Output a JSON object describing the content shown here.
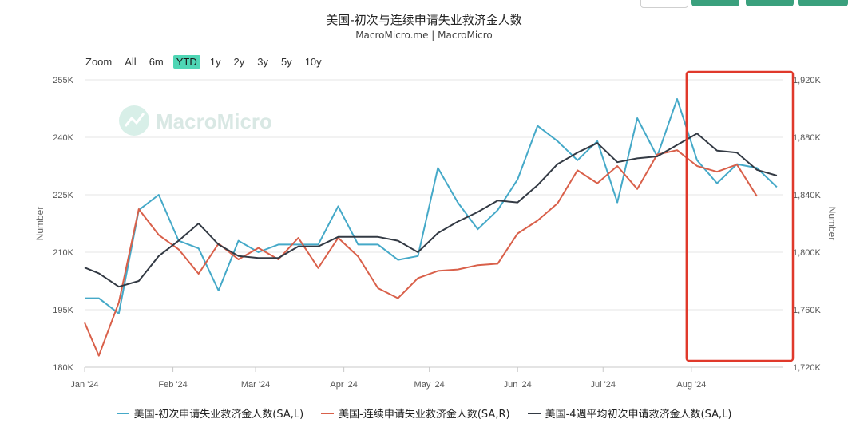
{
  "header": {
    "title": "美国-初次与连续申请失业救济金人数",
    "subtitle": "MacroMicro.me | MacroMicro"
  },
  "zoom": {
    "label": "Zoom",
    "options": [
      "All",
      "6m",
      "YTD",
      "1y",
      "2y",
      "3y",
      "5y",
      "10y"
    ],
    "active": "YTD"
  },
  "watermark": {
    "text": "MacroMicro"
  },
  "colors": {
    "initial": "#45a9c8",
    "continuing": "#d9604a",
    "avg4w": "#333a44",
    "highlight": "#e0392b"
  },
  "chart_data": {
    "type": "line",
    "x_ticks": [
      {
        "t": 0,
        "label": "Jan '24"
      },
      {
        "t": 31,
        "label": "Feb '24"
      },
      {
        "t": 60,
        "label": "Mar '24"
      },
      {
        "t": 91,
        "label": "Apr '24"
      },
      {
        "t": 121,
        "label": "May '24"
      },
      {
        "t": 152,
        "label": "Jun '24"
      },
      {
        "t": 182,
        "label": "Jul '24"
      },
      {
        "t": 213,
        "label": "Aug '24"
      }
    ],
    "x_range": [
      0,
      245
    ],
    "left_axis": {
      "title": "Number",
      "min": 180000,
      "max": 255000,
      "ticks": [
        {
          "v": 180000,
          "label": "180K"
        },
        {
          "v": 195000,
          "label": "195K"
        },
        {
          "v": 210000,
          "label": "210K"
        },
        {
          "v": 225000,
          "label": "225K"
        },
        {
          "v": 240000,
          "label": "240K"
        },
        {
          "v": 255000,
          "label": "255K"
        }
      ]
    },
    "right_axis": {
      "title": "Number",
      "min": 1720000,
      "max": 1920000,
      "ticks": [
        {
          "v": 1720000,
          "label": "1,720K"
        },
        {
          "v": 1760000,
          "label": "1,760K"
        },
        {
          "v": 1800000,
          "label": "1,800K"
        },
        {
          "v": 1840000,
          "label": "1,840K"
        },
        {
          "v": 1880000,
          "label": "1,880K"
        },
        {
          "v": 1920000,
          "label": "1,920K"
        }
      ]
    },
    "series": [
      {
        "name": "美国-初次申请失业救济金人数(SA,L)",
        "axis": "left",
        "color": "#45a9c8",
        "points": [
          [
            0,
            198000
          ],
          [
            5,
            198000
          ],
          [
            12,
            194000
          ],
          [
            19,
            221000
          ],
          [
            26,
            225000
          ],
          [
            33,
            213000
          ],
          [
            40,
            211000
          ],
          [
            47,
            200000
          ],
          [
            54,
            213000
          ],
          [
            61,
            210000
          ],
          [
            68,
            212000
          ],
          [
            75,
            212000
          ],
          [
            82,
            212000
          ],
          [
            89,
            222000
          ],
          [
            96,
            212000
          ],
          [
            103,
            212000
          ],
          [
            110,
            208000
          ],
          [
            117,
            209000
          ],
          [
            124,
            232000
          ],
          [
            131,
            223000
          ],
          [
            138,
            216000
          ],
          [
            145,
            221000
          ],
          [
            152,
            229000
          ],
          [
            159,
            243000
          ],
          [
            166,
            239000
          ],
          [
            173,
            234000
          ],
          [
            180,
            239000
          ],
          [
            187,
            223000
          ],
          [
            194,
            245000
          ],
          [
            201,
            235000
          ],
          [
            208,
            250000
          ],
          [
            215,
            234000
          ],
          [
            222,
            228000
          ],
          [
            229,
            233000
          ],
          [
            236,
            232000
          ],
          [
            243,
            227000
          ]
        ]
      },
      {
        "name": "美国-连续申请失业救济金人数(SA,R)",
        "axis": "right",
        "color": "#d9604a",
        "points": [
          [
            0,
            1751000
          ],
          [
            5,
            1728000
          ],
          [
            12,
            1765000
          ],
          [
            19,
            1830000
          ],
          [
            26,
            1812000
          ],
          [
            33,
            1802000
          ],
          [
            40,
            1785000
          ],
          [
            47,
            1806000
          ],
          [
            54,
            1795000
          ],
          [
            61,
            1803000
          ],
          [
            68,
            1795000
          ],
          [
            75,
            1810000
          ],
          [
            82,
            1789000
          ],
          [
            89,
            1810000
          ],
          [
            96,
            1797000
          ],
          [
            103,
            1775000
          ],
          [
            110,
            1768000
          ],
          [
            117,
            1782000
          ],
          [
            124,
            1787000
          ],
          [
            131,
            1788000
          ],
          [
            138,
            1791000
          ],
          [
            145,
            1792000
          ],
          [
            152,
            1813000
          ],
          [
            159,
            1822000
          ],
          [
            166,
            1834000
          ],
          [
            173,
            1857000
          ],
          [
            180,
            1848000
          ],
          [
            187,
            1860000
          ],
          [
            194,
            1844000
          ],
          [
            201,
            1868000
          ],
          [
            208,
            1871000
          ],
          [
            215,
            1860000
          ],
          [
            222,
            1856000
          ],
          [
            229,
            1861000
          ],
          [
            236,
            1839000
          ]
        ]
      },
      {
        "name": "美国-4週平均初次申请救济金人数(SA,L)",
        "axis": "left",
        "color": "#333a44",
        "points": [
          [
            0,
            206000
          ],
          [
            5,
            204500
          ],
          [
            12,
            201000
          ],
          [
            19,
            202500
          ],
          [
            26,
            209000
          ],
          [
            33,
            213000
          ],
          [
            40,
            217500
          ],
          [
            47,
            212000
          ],
          [
            54,
            209000
          ],
          [
            61,
            208500
          ],
          [
            68,
            208500
          ],
          [
            75,
            211500
          ],
          [
            82,
            211500
          ],
          [
            89,
            214000
          ],
          [
            96,
            214000
          ],
          [
            103,
            214000
          ],
          [
            110,
            213000
          ],
          [
            117,
            210000
          ],
          [
            124,
            215000
          ],
          [
            131,
            218000
          ],
          [
            138,
            220500
          ],
          [
            145,
            223500
          ],
          [
            152,
            223000
          ],
          [
            159,
            227500
          ],
          [
            166,
            233000
          ],
          [
            173,
            236000
          ],
          [
            180,
            238500
          ],
          [
            187,
            233500
          ],
          [
            194,
            234500
          ],
          [
            201,
            235000
          ],
          [
            208,
            238000
          ],
          [
            215,
            241000
          ],
          [
            222,
            236500
          ],
          [
            229,
            236000
          ],
          [
            236,
            231500
          ],
          [
            243,
            230000
          ]
        ]
      }
    ],
    "highlight_box": {
      "x_start": 213,
      "x_end": 245,
      "y_top": 1925000,
      "y_bottom": 1725000
    }
  }
}
